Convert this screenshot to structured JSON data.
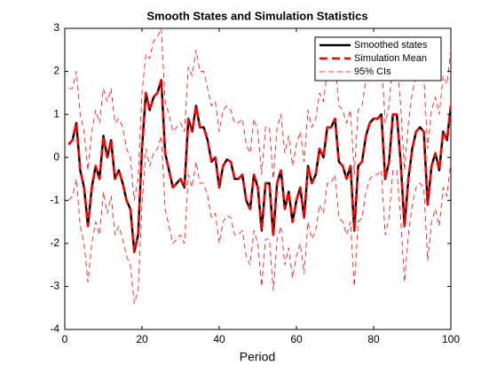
{
  "chart_data": {
    "type": "line",
    "title": "Smooth States and Simulation Statistics",
    "x_label": "Period",
    "x": [
      1,
      2,
      3,
      4,
      5,
      6,
      7,
      8,
      9,
      10,
      11,
      12,
      13,
      14,
      15,
      16,
      17,
      18,
      19,
      20,
      21,
      22,
      23,
      24,
      25,
      26,
      27,
      28,
      29,
      30,
      31,
      32,
      33,
      34,
      35,
      36,
      37,
      38,
      39,
      40,
      41,
      42,
      43,
      44,
      45,
      46,
      47,
      48,
      49,
      50,
      51,
      52,
      53,
      54,
      55,
      56,
      57,
      58,
      59,
      60,
      61,
      62,
      63,
      64,
      65,
      66,
      67,
      68,
      69,
      70,
      71,
      72,
      73,
      74,
      75,
      76,
      77,
      78,
      79,
      80,
      81,
      82,
      83,
      84,
      85,
      86,
      87,
      88,
      89,
      90,
      91,
      92,
      93,
      94,
      95,
      96,
      97,
      98,
      99,
      100
    ],
    "series": [
      {
        "name": "Smoothed states",
        "color": "#000000",
        "width": 2.5,
        "dash": "",
        "values": [
          0.3,
          0.4,
          0.8,
          -0.3,
          -0.7,
          -1.6,
          -0.7,
          -0.2,
          -0.5,
          0.5,
          0.0,
          0.4,
          -0.5,
          -0.3,
          -0.6,
          -1.0,
          -1.2,
          -2.2,
          -1.8,
          0.2,
          1.5,
          1.1,
          1.4,
          1.5,
          1.8,
          0.1,
          -0.3,
          -0.7,
          -0.6,
          -0.5,
          -0.7,
          0.9,
          0.6,
          1.2,
          0.7,
          0.7,
          0.4,
          -0.1,
          0.0,
          -0.7,
          -0.2,
          -0.05,
          -0.1,
          -0.5,
          -0.5,
          -0.4,
          -1.0,
          -1.2,
          -0.4,
          -0.7,
          -1.7,
          -0.6,
          -0.6,
          -1.8,
          -0.6,
          -0.3,
          -1.2,
          -0.8,
          -1.5,
          -1.0,
          -0.7,
          -1.4,
          -0.2,
          -0.6,
          -0.4,
          0.2,
          0.0,
          0.7,
          0.7,
          0.9,
          -0.1,
          -0.2,
          -0.5,
          -0.2,
          -1.7,
          -0.2,
          -0.1,
          0.5,
          0.8,
          0.9,
          0.9,
          1.0,
          -0.5,
          -0.1,
          1.0,
          1.0,
          -0.1,
          -1.6,
          -0.5,
          0.2,
          0.6,
          0.7,
          0.6,
          -1.1,
          -0.2,
          0.1,
          -0.3,
          0.6,
          0.4,
          1.2
        ]
      },
      {
        "name": "Simulation Mean",
        "color": "#ff0000",
        "width": 2.5,
        "dash": "9 5",
        "values": [
          0.3,
          0.4,
          0.8,
          -0.3,
          -0.7,
          -1.6,
          -0.7,
          -0.2,
          -0.5,
          0.5,
          0.0,
          0.4,
          -0.5,
          -0.3,
          -0.6,
          -1.0,
          -1.2,
          -2.2,
          -1.8,
          0.2,
          1.5,
          1.1,
          1.4,
          1.5,
          1.8,
          0.1,
          -0.3,
          -0.7,
          -0.6,
          -0.5,
          -0.7,
          0.9,
          0.6,
          1.2,
          0.7,
          0.7,
          0.4,
          -0.1,
          0.0,
          -0.7,
          -0.2,
          -0.05,
          -0.1,
          -0.5,
          -0.5,
          -0.4,
          -1.0,
          -1.2,
          -0.4,
          -0.7,
          -1.7,
          -0.6,
          -0.6,
          -1.8,
          -0.6,
          -0.3,
          -1.2,
          -0.8,
          -1.5,
          -1.0,
          -0.7,
          -1.4,
          -0.2,
          -0.6,
          -0.4,
          0.2,
          0.0,
          0.7,
          0.7,
          0.9,
          -0.1,
          -0.2,
          -0.5,
          -0.2,
          -1.7,
          -0.2,
          -0.1,
          0.5,
          0.8,
          0.9,
          0.9,
          1.0,
          -0.5,
          -0.1,
          1.0,
          1.0,
          -0.1,
          -1.6,
          -0.5,
          0.2,
          0.6,
          0.7,
          0.6,
          -1.1,
          -0.2,
          0.1,
          -0.3,
          0.6,
          0.4,
          1.2
        ]
      },
      {
        "name": "95% CIs",
        "color": "#ff0000",
        "width": 0.8,
        "dash": "6 4",
        "values": [
          1.6,
          1.6,
          2.0,
          1.0,
          0.6,
          -0.3,
          0.6,
          1.1,
          0.8,
          1.6,
          1.3,
          1.6,
          0.8,
          0.9,
          0.7,
          0.2,
          0.0,
          -1.0,
          -0.5,
          1.5,
          2.4,
          2.3,
          2.7,
          2.8,
          3.0,
          1.3,
          1.0,
          0.6,
          0.7,
          0.8,
          0.6,
          2.1,
          1.9,
          2.5,
          2.0,
          2.0,
          1.6,
          1.2,
          1.3,
          0.6,
          1.1,
          1.2,
          1.1,
          0.8,
          0.8,
          0.9,
          0.3,
          0.1,
          0.9,
          0.6,
          -0.4,
          0.7,
          0.7,
          -0.5,
          0.7,
          1.0,
          0.1,
          0.5,
          -0.2,
          0.3,
          0.6,
          -0.1,
          1.1,
          0.7,
          0.9,
          1.5,
          1.3,
          2.0,
          2.0,
          2.2,
          1.2,
          1.1,
          0.8,
          1.1,
          -0.4,
          1.1,
          1.2,
          1.8,
          2.1,
          2.2,
          2.2,
          2.3,
          0.8,
          1.2,
          2.3,
          2.3,
          1.2,
          -0.3,
          0.8,
          1.5,
          1.9,
          2.0,
          1.9,
          0.2,
          1.1,
          1.4,
          1.0,
          1.9,
          1.7,
          2.5
        ]
      },
      {
        "color": "#ff0000",
        "width": 0.8,
        "dash": "6 4",
        "values": [
          -1.0,
          -0.9,
          -0.5,
          -1.6,
          -2.0,
          -2.9,
          -2.0,
          -1.5,
          -1.8,
          -0.8,
          -1.3,
          -0.9,
          -1.8,
          -1.6,
          -1.9,
          -2.3,
          -2.5,
          -3.4,
          -3.1,
          -1.1,
          0.2,
          -0.2,
          0.1,
          0.2,
          0.5,
          -1.2,
          -1.6,
          -2.0,
          -1.9,
          -1.8,
          -2.0,
          -0.4,
          -0.7,
          -0.1,
          -0.6,
          -0.6,
          -0.9,
          -1.4,
          -1.3,
          -2.0,
          -1.5,
          -1.35,
          -1.4,
          -1.8,
          -1.8,
          -1.7,
          -2.3,
          -2.5,
          -1.7,
          -2.0,
          -3.0,
          -1.9,
          -1.9,
          -3.1,
          -1.9,
          -1.6,
          -2.5,
          -2.1,
          -2.8,
          -2.3,
          -2.0,
          -2.7,
          -1.5,
          -1.9,
          -1.7,
          -1.1,
          -1.3,
          -0.6,
          -0.6,
          -0.4,
          -1.4,
          -1.5,
          -1.8,
          -1.5,
          -3.0,
          -1.5,
          -1.4,
          -0.8,
          -0.5,
          -0.4,
          -0.4,
          -0.3,
          -1.8,
          -1.4,
          -0.3,
          -0.3,
          -1.4,
          -2.9,
          -1.8,
          -1.1,
          -0.7,
          -0.6,
          -0.7,
          -2.4,
          -1.5,
          -1.2,
          -1.6,
          -0.7,
          -0.9,
          -0.1
        ]
      }
    ],
    "xlim": [
      0,
      100
    ],
    "xticks": [
      0,
      20,
      40,
      60,
      80,
      100
    ],
    "ylim": [
      -4,
      3
    ],
    "yticks": [
      -4,
      -3,
      -2,
      -1,
      0,
      1,
      2,
      3
    ],
    "legend": "upper right"
  }
}
